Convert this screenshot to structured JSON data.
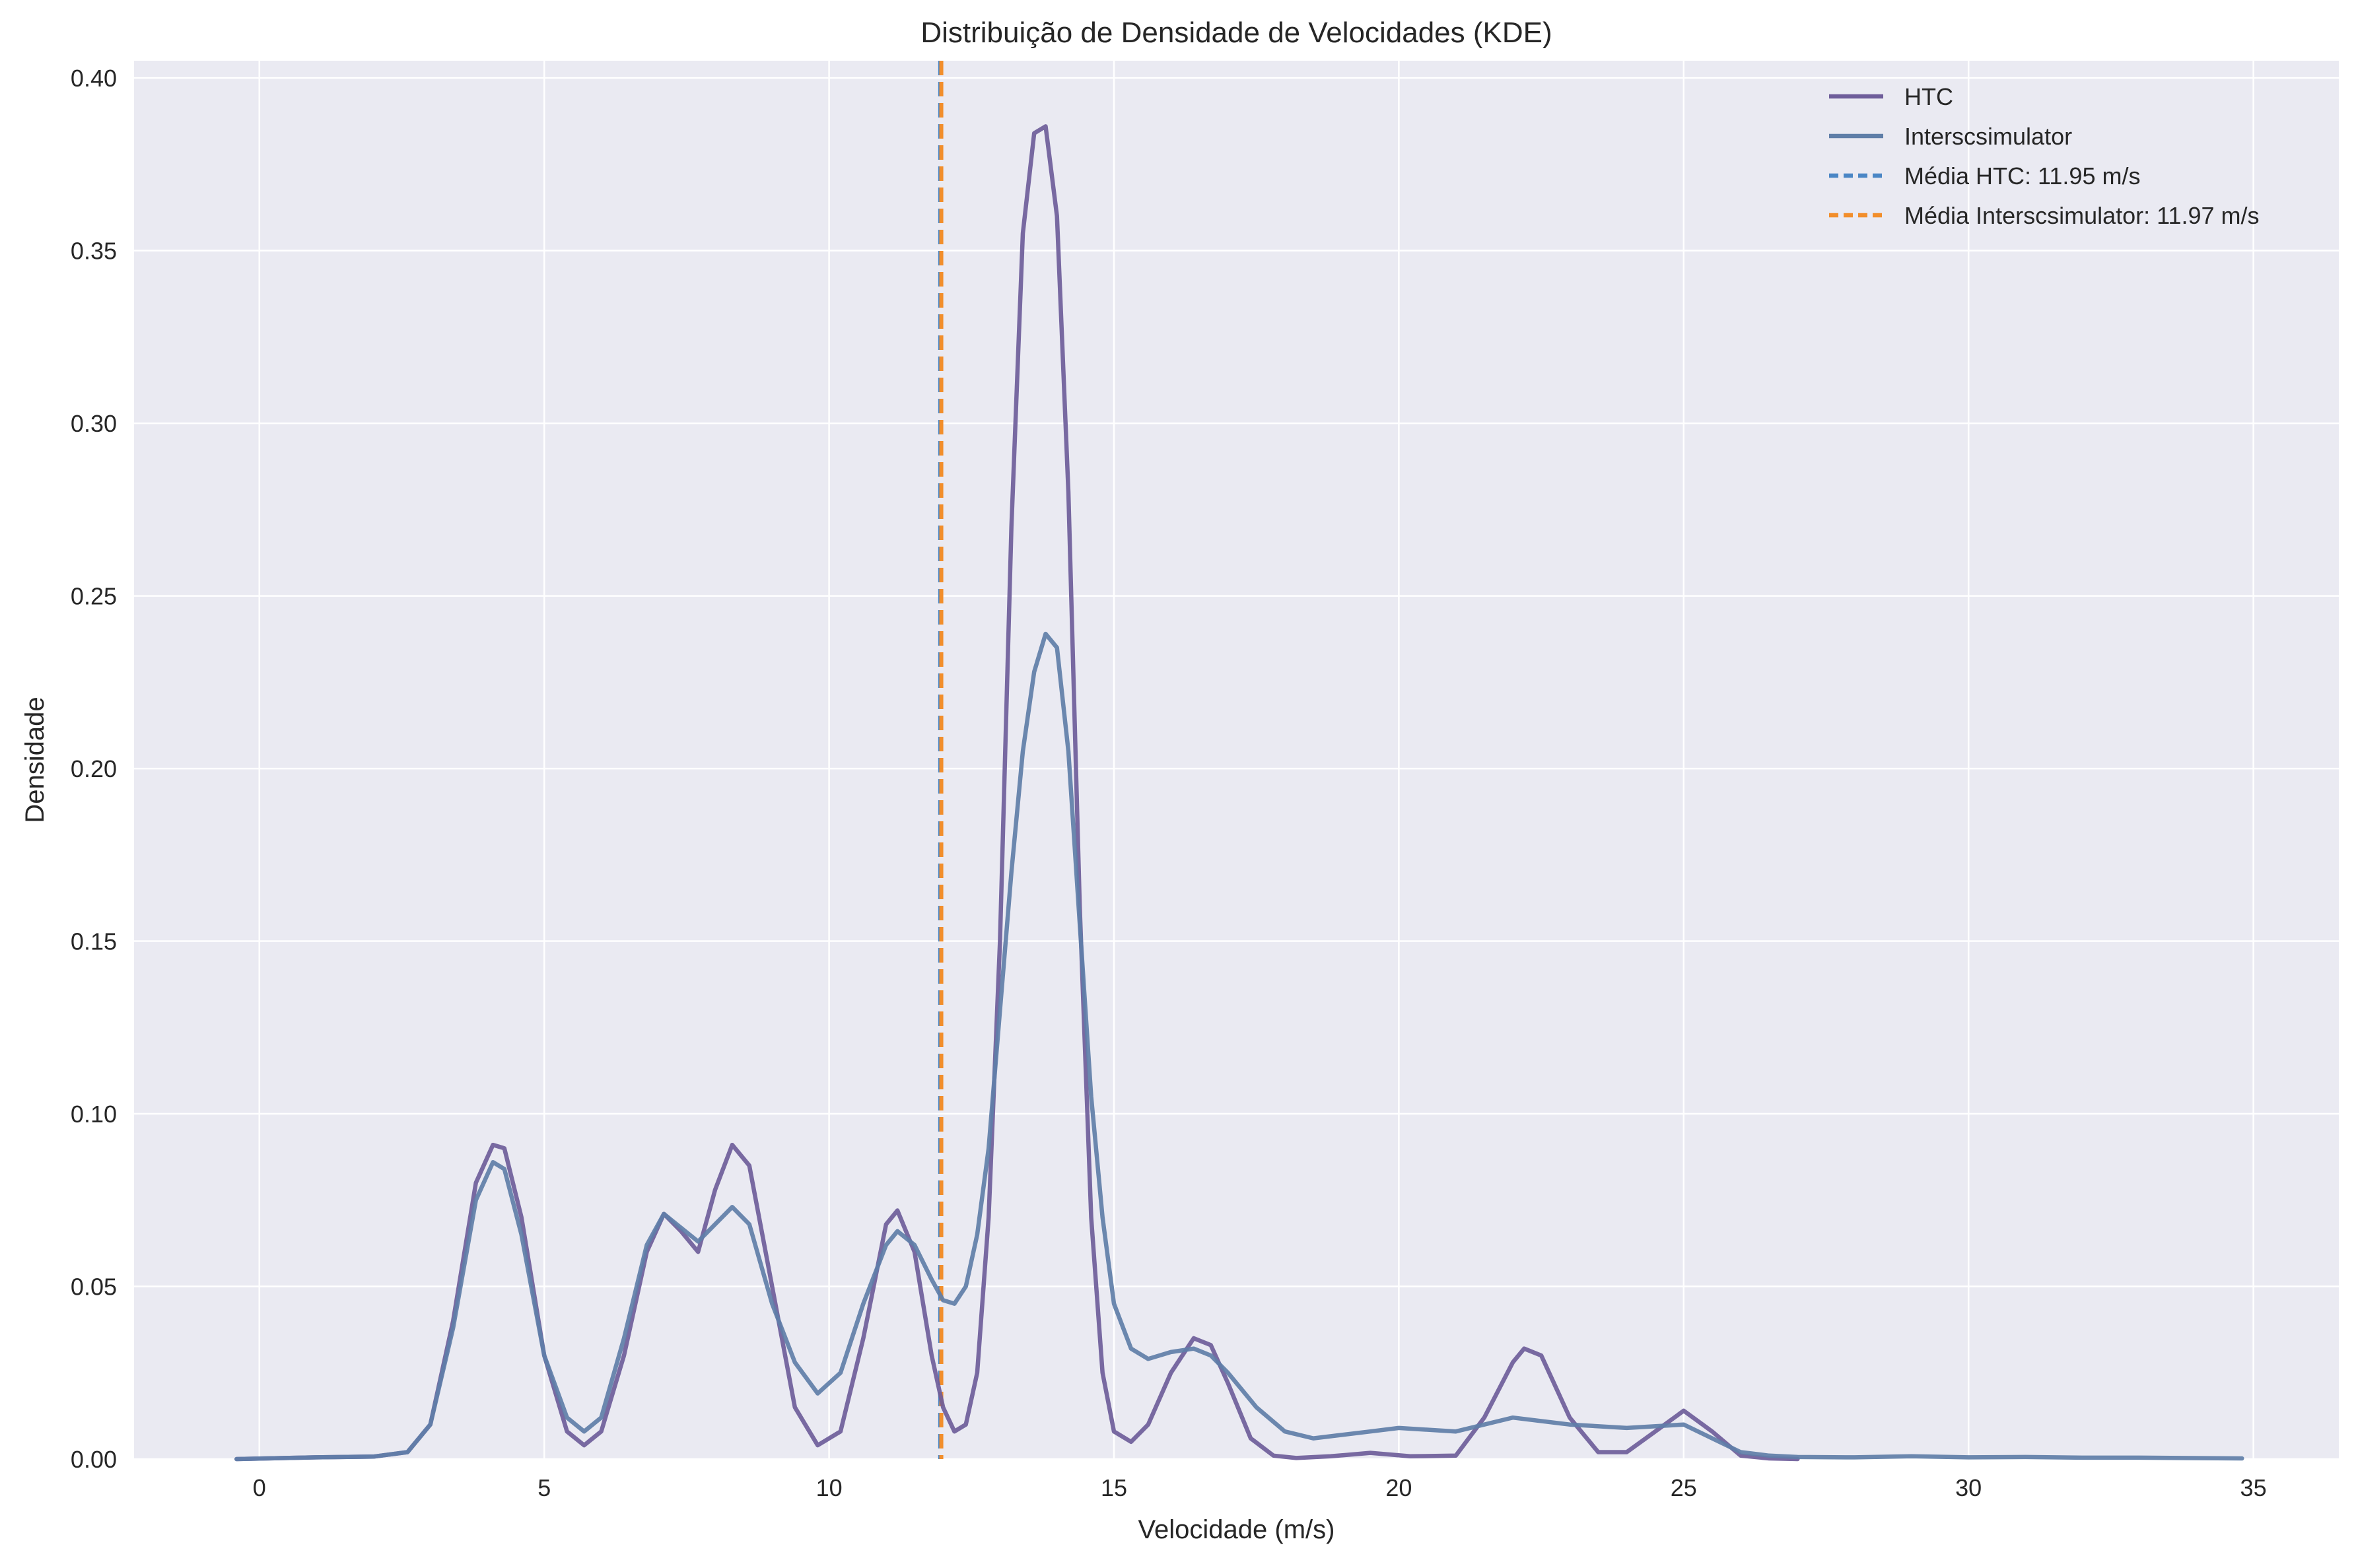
{
  "chart_data": {
    "type": "line",
    "title": "Distribuição de Densidade de Velocidades (KDE)",
    "xlabel": "Velocidade (m/s)",
    "ylabel": "Densidade",
    "xlim": [
      -2.2,
      36.5
    ],
    "ylim": [
      0,
      0.405
    ],
    "x_ticks": [
      0,
      5,
      10,
      15,
      20,
      25,
      30,
      35
    ],
    "x_tick_labels": [
      "0",
      "5",
      "10",
      "15",
      "20",
      "25",
      "30",
      "35"
    ],
    "y_ticks": [
      0.0,
      0.05,
      0.1,
      0.15,
      0.2,
      0.25,
      0.3,
      0.35,
      0.4
    ],
    "y_tick_labels": [
      "0.00",
      "0.05",
      "0.10",
      "0.15",
      "0.20",
      "0.25",
      "0.30",
      "0.35",
      "0.40"
    ],
    "grid": true,
    "legend_position": "top-right",
    "series": [
      {
        "name": "HTC",
        "color": "#6e5d9a",
        "x": [
          -0.4,
          1.0,
          2.0,
          2.6,
          3.0,
          3.4,
          3.8,
          4.1,
          4.3,
          4.6,
          5.0,
          5.4,
          5.7,
          6.0,
          6.4,
          6.8,
          7.1,
          7.4,
          7.7,
          8.0,
          8.3,
          8.6,
          9.0,
          9.4,
          9.8,
          10.2,
          10.6,
          11.0,
          11.2,
          11.5,
          11.8,
          12.0,
          12.2,
          12.4,
          12.6,
          12.8,
          13.0,
          13.2,
          13.4,
          13.6,
          13.8,
          14.0,
          14.2,
          14.4,
          14.6,
          14.8,
          15.0,
          15.3,
          15.6,
          16.0,
          16.4,
          16.7,
          17.0,
          17.4,
          17.8,
          18.2,
          18.8,
          19.5,
          20.2,
          21.0,
          21.5,
          22.0,
          22.2,
          22.5,
          23.0,
          23.5,
          24.0,
          24.5,
          25.0,
          25.5,
          26.0,
          26.5,
          27.0
        ],
        "y": [
          0.0,
          0.0005,
          0.0007,
          0.002,
          0.01,
          0.04,
          0.08,
          0.091,
          0.09,
          0.07,
          0.03,
          0.008,
          0.004,
          0.008,
          0.03,
          0.06,
          0.071,
          0.066,
          0.06,
          0.078,
          0.091,
          0.085,
          0.05,
          0.015,
          0.004,
          0.008,
          0.035,
          0.068,
          0.072,
          0.06,
          0.03,
          0.015,
          0.008,
          0.01,
          0.025,
          0.07,
          0.15,
          0.27,
          0.355,
          0.384,
          0.386,
          0.36,
          0.28,
          0.16,
          0.07,
          0.025,
          0.008,
          0.005,
          0.01,
          0.025,
          0.035,
          0.033,
          0.022,
          0.006,
          0.001,
          0.0003,
          0.0008,
          0.0018,
          0.0008,
          0.001,
          0.012,
          0.028,
          0.032,
          0.03,
          0.012,
          0.002,
          0.002,
          0.008,
          0.014,
          0.008,
          0.001,
          0.0002,
          0.0
        ]
      },
      {
        "name": "Interscsimulator",
        "color": "#5f7ea8",
        "x": [
          -0.4,
          1.0,
          2.0,
          2.6,
          3.0,
          3.4,
          3.8,
          4.1,
          4.3,
          4.6,
          5.0,
          5.4,
          5.7,
          6.0,
          6.4,
          6.8,
          7.1,
          7.4,
          7.7,
          8.0,
          8.3,
          8.6,
          9.0,
          9.4,
          9.8,
          10.2,
          10.6,
          11.0,
          11.2,
          11.5,
          11.8,
          12.0,
          12.2,
          12.4,
          12.6,
          12.8,
          13.0,
          13.2,
          13.4,
          13.6,
          13.8,
          14.0,
          14.2,
          14.4,
          14.6,
          14.8,
          15.0,
          15.3,
          15.6,
          16.0,
          16.4,
          16.7,
          17.0,
          17.5,
          18.0,
          18.5,
          19.0,
          19.5,
          20.0,
          21.0,
          22.0,
          23.0,
          24.0,
          25.0,
          25.5,
          26.0,
          26.5,
          27.0,
          28.0,
          29.0,
          30.0,
          31.0,
          32.0,
          33.0,
          34.8
        ],
        "y": [
          0.0,
          0.0005,
          0.0007,
          0.002,
          0.01,
          0.038,
          0.075,
          0.086,
          0.084,
          0.065,
          0.03,
          0.012,
          0.008,
          0.012,
          0.035,
          0.062,
          0.071,
          0.067,
          0.063,
          0.068,
          0.073,
          0.068,
          0.045,
          0.028,
          0.019,
          0.025,
          0.045,
          0.062,
          0.066,
          0.062,
          0.052,
          0.046,
          0.045,
          0.05,
          0.065,
          0.09,
          0.13,
          0.17,
          0.205,
          0.228,
          0.239,
          0.235,
          0.205,
          0.155,
          0.105,
          0.07,
          0.045,
          0.032,
          0.029,
          0.031,
          0.032,
          0.03,
          0.025,
          0.015,
          0.008,
          0.006,
          0.007,
          0.008,
          0.009,
          0.008,
          0.012,
          0.01,
          0.009,
          0.01,
          0.006,
          0.002,
          0.001,
          0.0006,
          0.0005,
          0.0008,
          0.0005,
          0.0006,
          0.0004,
          0.0004,
          0.0002
        ]
      }
    ],
    "reference_lines": [
      {
        "label": "Média HTC: 11.95 m/s",
        "x": 11.95,
        "color": "#4a86c5",
        "style": "dashed"
      },
      {
        "label": "Média Interscsimulator: 11.97 m/s",
        "x": 11.97,
        "color": "#f28e2b",
        "style": "dashed"
      }
    ]
  }
}
